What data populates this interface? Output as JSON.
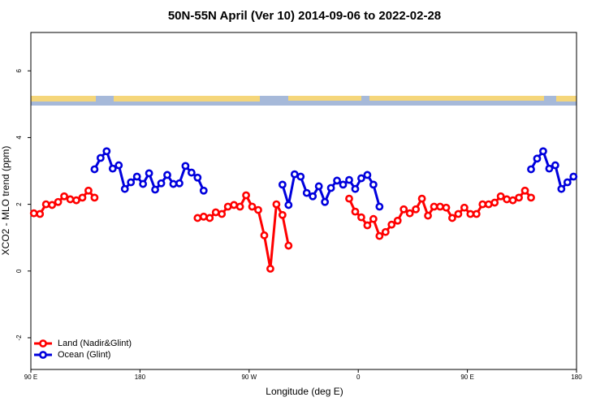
{
  "chart_data": {
    "type": "line",
    "title": "50N-55N April (Ver 10)   2014-09-06 to 2022-02-28",
    "x_label": "Longitude (deg E)",
    "y_label": "XCO2 - MLO trend (ppm)",
    "xlim": [
      90,
      540
    ],
    "xticks": [
      {
        "value": 90,
        "label": "90 E"
      },
      180,
      {
        "value": 270,
        "label": "90 W"
      },
      {
        "value": 360,
        "label": "0"
      },
      {
        "value": 450,
        "label": "90 E"
      },
      {
        "value": 540,
        "label": "180"
      }
    ],
    "ylim": [
      -2.95,
      7.15
    ],
    "yticks": [
      -2,
      0,
      2,
      4,
      6
    ],
    "legend": "bottom-left",
    "x": [
      92.5,
      97.5,
      102.5,
      107.5,
      112.5,
      117.5,
      122.5,
      127.5,
      132.5,
      137.5,
      142.5,
      147.5,
      152.5,
      157.5,
      162.5,
      167.5,
      172.5,
      177.5,
      182.5,
      187.5,
      192.5,
      197.5,
      202.5,
      207.5,
      212.5,
      217.5,
      222.5,
      227.5,
      232.5,
      237.5,
      242.5,
      247.5,
      252.5,
      257.5,
      262.5,
      267.5,
      272.5,
      277.5,
      282.5,
      287.5,
      292.5,
      297.5,
      302.5,
      307.5,
      312.5,
      317.5,
      322.5,
      327.5,
      332.5,
      337.5,
      342.5,
      347.5,
      352.5,
      357.5,
      362.5,
      367.5,
      372.5,
      377.5,
      382.5,
      387.5,
      392.5,
      397.5,
      402.5,
      407.5,
      412.5,
      417.5,
      422.5,
      427.5,
      432.5,
      437.5,
      442.5,
      447.5,
      452.5,
      457.5,
      462.5,
      467.5,
      472.5,
      477.5,
      482.5,
      487.5,
      492.5,
      497.5,
      502.5,
      507.5,
      512.5,
      517.5,
      522.5,
      527.5,
      532.5,
      537.5
    ],
    "series": [
      {
        "name": "Land (Nadir&Glint)",
        "color": "#ff0000",
        "values": [
          1.73,
          1.71,
          2.0,
          1.98,
          2.07,
          2.24,
          2.15,
          2.12,
          2.2,
          2.41,
          2.2,
          null,
          null,
          null,
          null,
          null,
          null,
          null,
          null,
          null,
          null,
          null,
          null,
          null,
          null,
          null,
          null,
          1.59,
          1.63,
          1.59,
          1.76,
          1.71,
          1.93,
          1.98,
          1.93,
          2.27,
          1.93,
          1.83,
          1.07,
          0.07,
          2.0,
          1.68,
          0.76,
          null,
          null,
          null,
          null,
          null,
          null,
          null,
          null,
          null,
          2.17,
          1.78,
          1.61,
          1.37,
          1.56,
          1.05,
          1.17,
          1.39,
          1.51,
          1.85,
          1.73,
          1.85,
          2.17,
          1.66,
          1.93,
          1.93,
          1.9,
          1.59,
          1.71,
          1.9,
          1.71,
          1.71,
          2.0,
          2.0,
          2.05,
          2.24,
          2.15,
          2.12,
          2.2,
          2.41,
          2.2,
          null,
          null,
          null,
          null,
          null,
          null,
          null
        ]
      },
      {
        "name": "Ocean (Glint)",
        "color": "#0000dd",
        "values": [
          null,
          null,
          null,
          null,
          null,
          null,
          null,
          null,
          null,
          null,
          3.05,
          3.39,
          3.59,
          3.07,
          3.17,
          2.46,
          2.66,
          2.83,
          2.61,
          2.93,
          2.44,
          2.63,
          2.88,
          2.61,
          2.63,
          3.15,
          2.95,
          2.8,
          2.41,
          null,
          null,
          null,
          null,
          null,
          null,
          null,
          null,
          null,
          null,
          null,
          null,
          2.59,
          1.98,
          2.9,
          2.83,
          2.34,
          2.24,
          2.54,
          2.07,
          2.49,
          2.71,
          2.59,
          2.73,
          2.46,
          2.78,
          2.88,
          2.59,
          1.93,
          null,
          null,
          null,
          null,
          null,
          null,
          null,
          null,
          null,
          null,
          null,
          null,
          null,
          null,
          null,
          null,
          null,
          null,
          null,
          null,
          null,
          null,
          null,
          null,
          3.05,
          3.37,
          3.59,
          3.07,
          3.17,
          2.46,
          2.66,
          2.83
        ]
      }
    ]
  }
}
